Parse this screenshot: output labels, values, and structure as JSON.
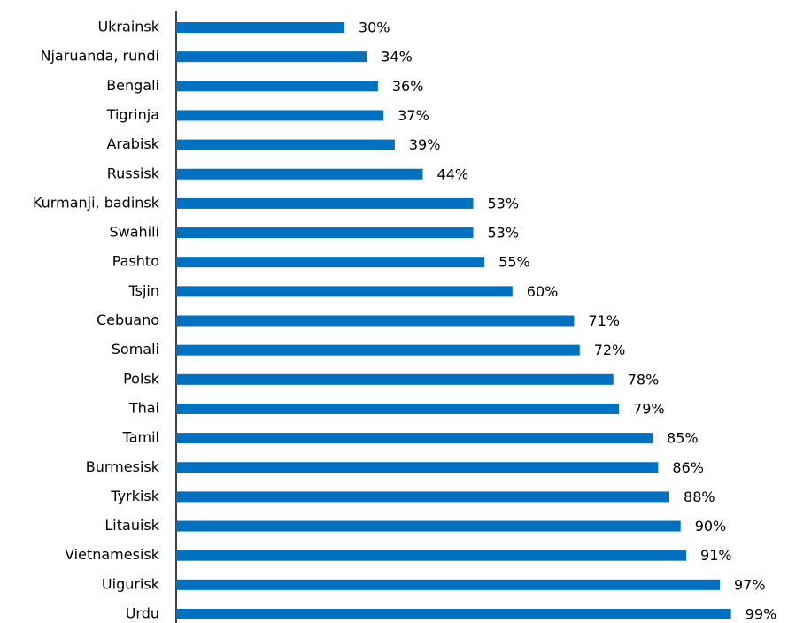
{
  "chart_data": {
    "type": "bar",
    "orientation": "horizontal",
    "categories": [
      "Ukrainsk",
      "Njaruanda, rundi",
      "Bengali",
      "Tigrinja",
      "Arabisk",
      "Russisk",
      "Kurmanji, badinsk",
      "Swahili",
      "Pashto",
      "Tsjin",
      "Cebuano",
      "Somali",
      "Polsk",
      "Thai",
      "Tamil",
      "Burmesisk",
      "Tyrkisk",
      "Litauisk",
      "Vietnamesisk",
      "Uigurisk",
      "Urdu"
    ],
    "values": [
      30,
      34,
      36,
      37,
      39,
      44,
      53,
      53,
      55,
      60,
      71,
      72,
      78,
      79,
      85,
      86,
      88,
      90,
      91,
      97,
      99
    ],
    "value_labels": [
      "30%",
      "34%",
      "36%",
      "37%",
      "39%",
      "44%",
      "53%",
      "53%",
      "55%",
      "60%",
      "71%",
      "72%",
      "78%",
      "79%",
      "85%",
      "86%",
      "88%",
      "90%",
      "91%",
      "97%",
      "99%"
    ],
    "color": "#0070c0",
    "xlim": [
      0,
      100
    ]
  }
}
